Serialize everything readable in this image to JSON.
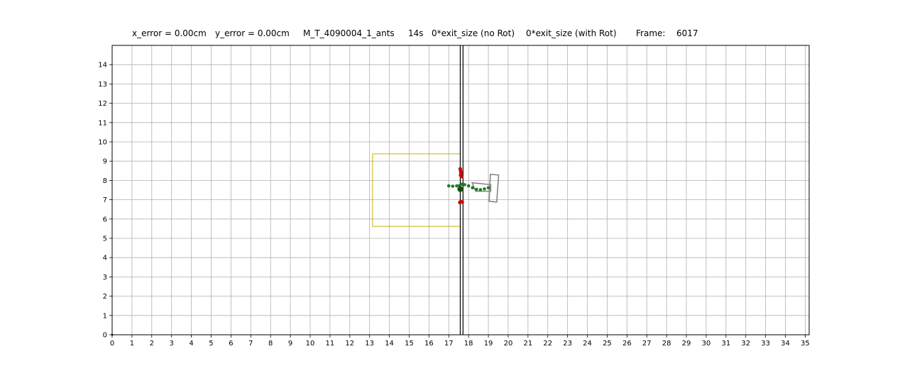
{
  "chart_data": {
    "type": "scatter",
    "title_parts": {
      "x_error": "x_error = 0.00cm",
      "y_error": "y_error = 0.00cm",
      "experiment": "M_T_4090004_1_ants",
      "time": "14s",
      "exit_no_rot": "0*exit_size  (no Rot)",
      "exit_with_rot": "0*exit_size  (with Rot)",
      "frame_label": "Frame:",
      "frame_value": "6017"
    },
    "xlabel": "",
    "ylabel": "",
    "xlim": [
      0,
      35.2
    ],
    "ylim": [
      0,
      15
    ],
    "xticks": [
      0,
      1,
      2,
      3,
      4,
      5,
      6,
      7,
      8,
      9,
      10,
      11,
      12,
      13,
      14,
      15,
      16,
      17,
      18,
      19,
      20,
      21,
      22,
      23,
      24,
      25,
      26,
      27,
      28,
      29,
      30,
      31,
      32,
      33,
      34,
      35
    ],
    "yticks": [
      0,
      1,
      2,
      3,
      4,
      5,
      6,
      7,
      8,
      9,
      10,
      11,
      12,
      13,
      14
    ],
    "grid": true,
    "colors": {
      "grid": "#b0b0b0",
      "slit": "#000000",
      "maze_box": "#c8b400",
      "shape": "#808080",
      "trajectory": "#1f7a1f",
      "trajectory_dark": "#0b4f0b",
      "contact": "#d40000"
    },
    "slit": {
      "x_left": 17.58,
      "x_right": 17.72,
      "y_min": 0,
      "y_max": 15
    },
    "maze_box": {
      "x": [
        13.15,
        17.58
      ],
      "y": [
        5.62,
        9.38
      ]
    },
    "shape_polygons": [
      [
        [
          18.18,
          7.88
        ],
        [
          19.12,
          7.78
        ],
        [
          19.12,
          7.44
        ],
        [
          18.36,
          7.44
        ]
      ],
      [
        [
          19.1,
          8.32
        ],
        [
          19.52,
          8.28
        ],
        [
          19.42,
          6.88
        ],
        [
          19.04,
          6.92
        ]
      ]
    ],
    "trajectory_points": [
      [
        17.0,
        7.72
      ],
      [
        17.2,
        7.7
      ],
      [
        17.4,
        7.72
      ],
      [
        17.55,
        7.74
      ],
      [
        17.6,
        7.6
      ],
      [
        17.65,
        7.8
      ],
      [
        17.8,
        7.78
      ],
      [
        18.0,
        7.72
      ],
      [
        18.2,
        7.62
      ],
      [
        18.4,
        7.54
      ],
      [
        18.6,
        7.52
      ],
      [
        18.8,
        7.56
      ],
      [
        19.0,
        7.62
      ]
    ],
    "trajectory_highlight": [
      [
        17.58,
        7.55
      ]
    ],
    "contact_points": [
      [
        17.58,
        8.6
      ],
      [
        17.6,
        8.48
      ],
      [
        17.62,
        8.38
      ],
      [
        17.6,
        8.28
      ],
      [
        17.64,
        8.2
      ],
      [
        17.6,
        6.9
      ],
      [
        17.68,
        6.88
      ],
      [
        17.56,
        6.86
      ]
    ],
    "origin_marker": [
      0,
      0
    ]
  }
}
